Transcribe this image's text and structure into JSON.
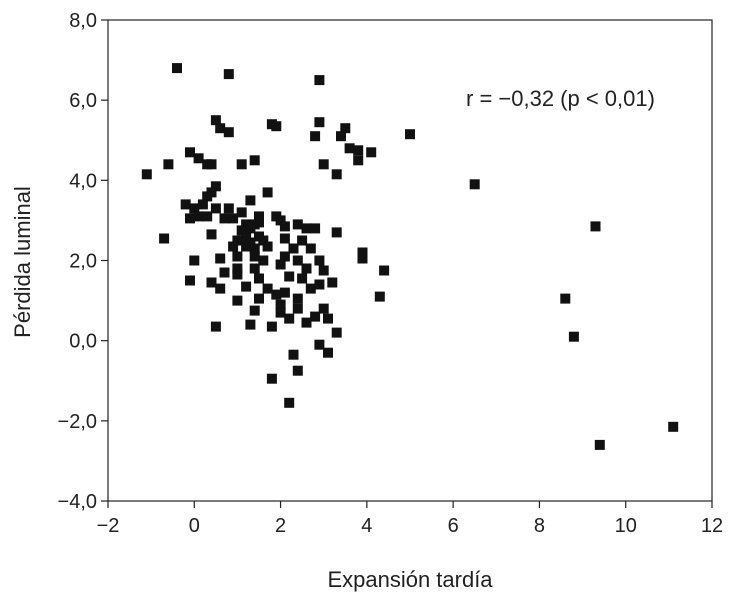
{
  "chart_data": {
    "type": "scatter",
    "xlabel": "Expansión tardía",
    "ylabel": "Pérdida luminal",
    "xlim": [
      -2,
      12
    ],
    "ylim": [
      -4,
      8
    ],
    "xticks": [
      -2,
      0,
      2,
      4,
      6,
      8,
      10,
      12
    ],
    "xtick_labels": [
      "−2",
      "0",
      "2",
      "4",
      "6",
      "8",
      "10",
      "12"
    ],
    "yticks": [
      -4,
      -2,
      0,
      2,
      4,
      6,
      8
    ],
    "ytick_labels": [
      "−4,0",
      "−2,0",
      "0,0",
      "2,0",
      "4,0",
      "6,0",
      "8,0"
    ],
    "annotation": "r = −0,32 (p < 0,01)",
    "grid": false,
    "marker": "square",
    "marker_color": "#111111",
    "points": [
      [
        -0.4,
        6.8
      ],
      [
        0.8,
        6.65
      ],
      [
        2.9,
        6.5
      ],
      [
        0.5,
        5.5
      ],
      [
        0.6,
        5.3
      ],
      [
        0.8,
        5.2
      ],
      [
        1.8,
        5.4
      ],
      [
        1.9,
        5.35
      ],
      [
        2.9,
        5.45
      ],
      [
        2.8,
        5.1
      ],
      [
        3.5,
        5.3
      ],
      [
        3.4,
        5.1
      ],
      [
        5.0,
        5.15
      ],
      [
        3.6,
        4.8
      ],
      [
        3.8,
        4.75
      ],
      [
        3.8,
        4.5
      ],
      [
        4.1,
        4.7
      ],
      [
        -0.1,
        4.7
      ],
      [
        0.1,
        4.55
      ],
      [
        0.3,
        4.4
      ],
      [
        0.4,
        4.4
      ],
      [
        -0.6,
        4.4
      ],
      [
        1.1,
        4.4
      ],
      [
        1.4,
        4.5
      ],
      [
        3.0,
        4.4
      ],
      [
        3.3,
        4.15
      ],
      [
        -1.1,
        4.15
      ],
      [
        6.5,
        3.9
      ],
      [
        0.5,
        3.85
      ],
      [
        0.4,
        3.7
      ],
      [
        0.3,
        3.6
      ],
      [
        1.3,
        3.5
      ],
      [
        1.7,
        3.7
      ],
      [
        -0.2,
        3.4
      ],
      [
        0.2,
        3.4
      ],
      [
        0.0,
        3.3
      ],
      [
        0.5,
        3.3
      ],
      [
        -0.1,
        3.05
      ],
      [
        0.1,
        3.1
      ],
      [
        0.3,
        3.1
      ],
      [
        0.7,
        3.05
      ],
      [
        0.9,
        3.05
      ],
      [
        0.8,
        3.3
      ],
      [
        1.1,
        3.2
      ],
      [
        1.5,
        3.1
      ],
      [
        1.9,
        3.1
      ],
      [
        2.0,
        3.0
      ],
      [
        1.2,
        2.9
      ],
      [
        1.4,
        2.9
      ],
      [
        1.5,
        2.95
      ],
      [
        1.1,
        2.75
      ],
      [
        1.3,
        2.8
      ],
      [
        2.1,
        2.85
      ],
      [
        2.4,
        2.9
      ],
      [
        2.6,
        2.8
      ],
      [
        2.8,
        2.8
      ],
      [
        3.3,
        2.7
      ],
      [
        9.3,
        2.85
      ],
      [
        0.4,
        2.65
      ],
      [
        1.2,
        2.6
      ],
      [
        1.0,
        2.5
      ],
      [
        1.3,
        2.45
      ],
      [
        1.5,
        2.6
      ],
      [
        1.6,
        2.5
      ],
      [
        2.1,
        2.55
      ],
      [
        2.5,
        2.5
      ],
      [
        -0.7,
        2.55
      ],
      [
        0.9,
        2.35
      ],
      [
        1.2,
        2.35
      ],
      [
        1.4,
        2.3
      ],
      [
        1.7,
        2.35
      ],
      [
        2.3,
        2.3
      ],
      [
        2.7,
        2.3
      ],
      [
        3.9,
        2.2
      ],
      [
        1.0,
        2.1
      ],
      [
        1.4,
        2.1
      ],
      [
        0.0,
        2.0
      ],
      [
        0.6,
        2.05
      ],
      [
        1.6,
        2.0
      ],
      [
        2.1,
        2.1
      ],
      [
        2.4,
        2.0
      ],
      [
        2.9,
        2.0
      ],
      [
        3.9,
        2.05
      ],
      [
        1.0,
        1.8
      ],
      [
        1.4,
        1.8
      ],
      [
        2.0,
        1.9
      ],
      [
        2.6,
        1.8
      ],
      [
        3.0,
        1.75
      ],
      [
        4.4,
        1.75
      ],
      [
        0.7,
        1.7
      ],
      [
        1.0,
        1.65
      ],
      [
        1.5,
        1.55
      ],
      [
        2.2,
        1.6
      ],
      [
        2.5,
        1.55
      ],
      [
        3.2,
        1.45
      ],
      [
        -0.1,
        1.5
      ],
      [
        0.4,
        1.45
      ],
      [
        0.6,
        1.3
      ],
      [
        1.2,
        1.35
      ],
      [
        1.7,
        1.3
      ],
      [
        2.1,
        1.2
      ],
      [
        2.7,
        1.3
      ],
      [
        2.9,
        1.4
      ],
      [
        1.5,
        1.05
      ],
      [
        1.9,
        1.15
      ],
      [
        2.4,
        1.05
      ],
      [
        1.0,
        1.0
      ],
      [
        2.0,
        0.9
      ],
      [
        3.0,
        0.8
      ],
      [
        4.3,
        1.1
      ],
      [
        8.6,
        1.05
      ],
      [
        1.4,
        0.75
      ],
      [
        2.0,
        0.7
      ],
      [
        2.4,
        0.8
      ],
      [
        2.8,
        0.6
      ],
      [
        3.1,
        0.55
      ],
      [
        2.2,
        0.55
      ],
      [
        0.5,
        0.35
      ],
      [
        1.3,
        0.4
      ],
      [
        1.8,
        0.35
      ],
      [
        2.6,
        0.45
      ],
      [
        3.3,
        0.2
      ],
      [
        8.8,
        0.1
      ],
      [
        2.9,
        -0.1
      ],
      [
        3.1,
        -0.3
      ],
      [
        2.3,
        -0.35
      ],
      [
        2.4,
        -0.75
      ],
      [
        1.8,
        -0.95
      ],
      [
        2.2,
        -1.55
      ],
      [
        9.4,
        -2.6
      ],
      [
        11.1,
        -2.15
      ]
    ]
  }
}
